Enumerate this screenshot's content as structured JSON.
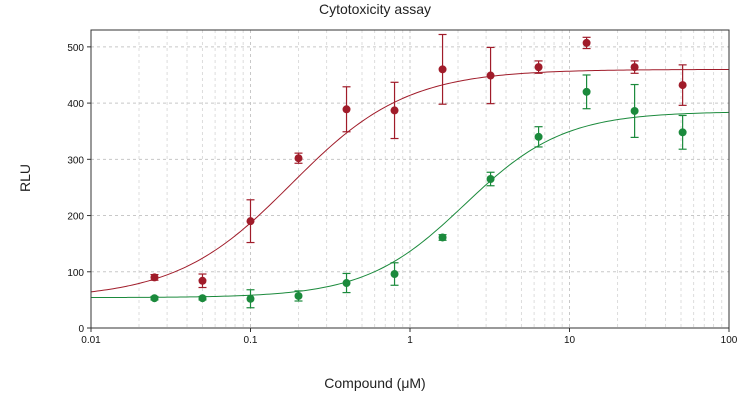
{
  "chart_data": {
    "type": "scatter",
    "title": "Cytotoxicity assay",
    "xlabel": "Compound (μM)",
    "ylabel": "RLU",
    "x_scale": "log",
    "xlim": [
      0.01,
      100
    ],
    "ylim": [
      0,
      530
    ],
    "x_ticks": [
      0.01,
      0.1,
      1,
      10,
      100
    ],
    "x_tick_labels": [
      "0.01",
      "0.1",
      "1",
      "10",
      "100"
    ],
    "y_ticks": [
      0,
      100,
      200,
      300,
      400,
      500
    ],
    "y_tick_labels": [
      "0",
      "100",
      "200",
      "300",
      "400",
      "500"
    ],
    "grid": true,
    "legend": false,
    "series": [
      {
        "color": "#a01c2a",
        "x": [
          0.025,
          0.05,
          0.1,
          0.2,
          0.4,
          0.8,
          1.6,
          3.2,
          6.4,
          12.8,
          25.6,
          51.2
        ],
        "y": [
          90,
          84,
          190,
          302,
          389,
          387,
          460,
          449,
          464,
          507,
          464,
          432
        ],
        "err": [
          5,
          12,
          38,
          9,
          40,
          50,
          62,
          50,
          11,
          10,
          11,
          36
        ],
        "fit": {
          "bottom": 52,
          "top": 460,
          "ec50": 0.18,
          "hill": 1.2
        }
      },
      {
        "color": "#1b8a3c",
        "x": [
          0.025,
          0.05,
          0.1,
          0.2,
          0.4,
          0.8,
          1.6,
          3.2,
          6.4,
          12.8,
          25.6,
          51.2
        ],
        "y": [
          53,
          53,
          52,
          57,
          80,
          96,
          161,
          265,
          340,
          420,
          386,
          348
        ],
        "err": [
          3,
          3,
          16,
          9,
          17,
          20,
          5,
          12,
          18,
          30,
          47,
          30
        ],
        "fit": {
          "bottom": 54,
          "top": 385,
          "ec50": 2.2,
          "hill": 1.4
        }
      }
    ]
  }
}
